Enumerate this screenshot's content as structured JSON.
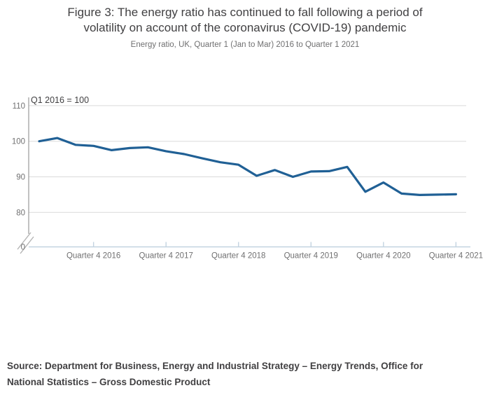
{
  "figure": {
    "title_lines": [
      "Figure 3: The energy ratio has continued to fall following a period of",
      "volatility on account of the coronavirus (COVID-19) pandemic"
    ],
    "subtitle": "Energy ratio, UK, Quarter 1 (Jan to Mar) 2016 to Quarter 1 2021",
    "source_lines": [
      "Source: Department for Business, Energy and Industrial Strategy – Energy Trends, Office for",
      "National Statistics – Gross Domestic Product"
    ]
  },
  "chart_data": {
    "type": "line",
    "title": "Figure 3: The energy ratio has continued to fall following a period of volatility on account of the coronavirus (COVID-19) pandemic",
    "subtitle": "Energy ratio, UK, Quarter 1 (Jan to Mar) 2016 to Quarter 1 2021",
    "annotation": "Q1 2016 = 100",
    "x": [
      "Q1 2016",
      "Q2 2016",
      "Q3 2016",
      "Q4 2016",
      "Q1 2017",
      "Q2 2017",
      "Q3 2017",
      "Q4 2017",
      "Q1 2018",
      "Q2 2018",
      "Q3 2018",
      "Q4 2018",
      "Q1 2019",
      "Q2 2019",
      "Q3 2019",
      "Q4 2019",
      "Q1 2020",
      "Q2 2020",
      "Q3 2020",
      "Q4 2020",
      "Q1 2021",
      "Q2 2021",
      "Q3 2021",
      "Q4 2021"
    ],
    "values": [
      100,
      100.9,
      99,
      98.7,
      97.5,
      98.1,
      98.3,
      97.2,
      96.4,
      95.2,
      94.1,
      93.4,
      90.3,
      91.9,
      90,
      91.5,
      91.6,
      92.8,
      85.8,
      88.4,
      85.3,
      84.9,
      85,
      85.1
    ],
    "series_name": "Energy ratio (Q1 2016 = 100)",
    "x_tick_labels": [
      "Quarter 4 2016",
      "Quarter 4 2017",
      "Quarter 4 2018",
      "Quarter 4 2019",
      "Quarter 4 2020",
      "Quarter 4 2021"
    ],
    "y_ticks": [
      {
        "label": "110",
        "value": 110
      },
      {
        "label": "100",
        "value": 100
      },
      {
        "label": "90",
        "value": 90
      },
      {
        "label": "80",
        "value": 80
      },
      {
        "label": "0",
        "value": 0
      }
    ],
    "y_axis_break": true,
    "ylim_display": [
      80,
      110
    ],
    "grid": "horizontal",
    "legend": "none",
    "line_color": "#206095",
    "label_color": "#707071",
    "annotation_color": "#414042"
  }
}
